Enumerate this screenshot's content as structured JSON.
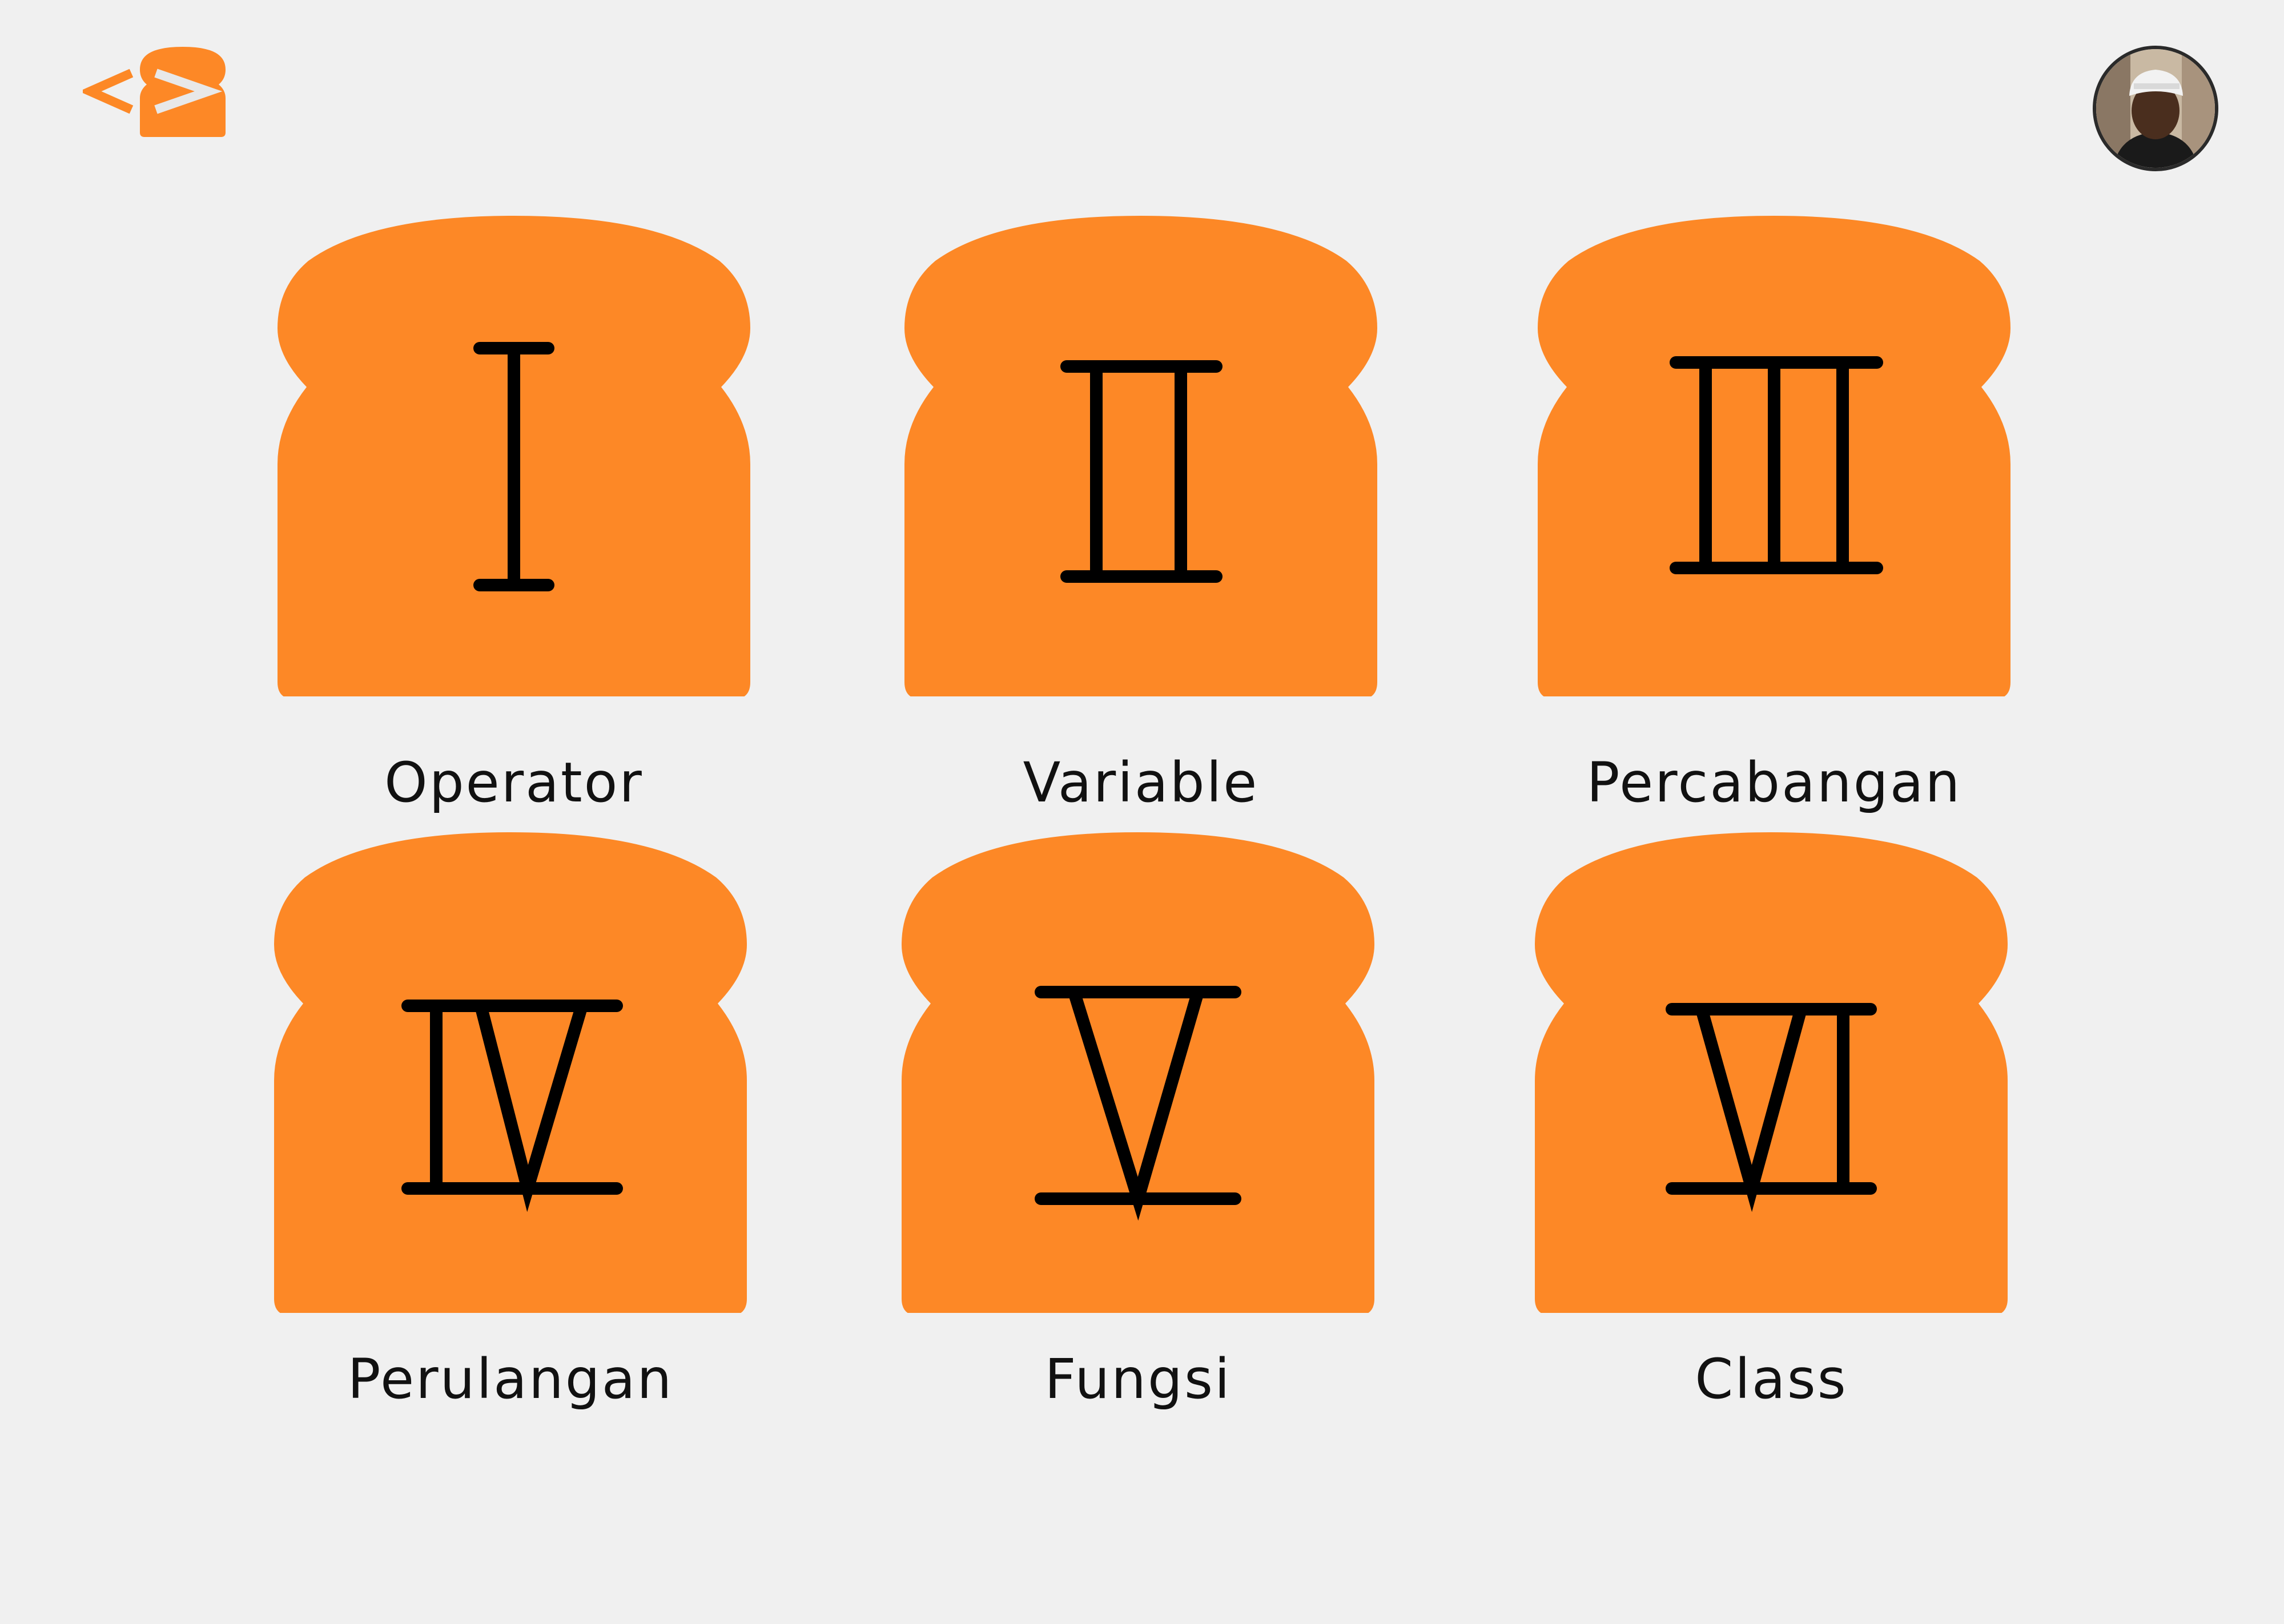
{
  "brand": {
    "accent_color": "#fd8826",
    "numeral_color": "#000000",
    "background_color": "#f0f0f0"
  },
  "header": {
    "logo_icon": "code-bracket-bread-icon",
    "avatar_icon": "user-avatar"
  },
  "cards": [
    {
      "numeral": "I",
      "label": "Operator"
    },
    {
      "numeral": "II",
      "label": "Variable"
    },
    {
      "numeral": "III",
      "label": "Percabangan"
    },
    {
      "numeral": "IV",
      "label": "Perulangan"
    },
    {
      "numeral": "V",
      "label": "Fungsi"
    },
    {
      "numeral": "VI",
      "label": "Class"
    }
  ]
}
